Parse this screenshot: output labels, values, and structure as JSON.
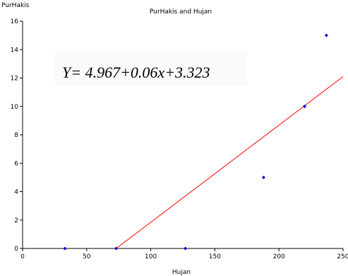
{
  "chart_data": {
    "type": "scatter",
    "title": "PurHakis and Hujan",
    "xlabel": "Hujan",
    "ylabel": "PurHakis",
    "xlim": [
      0,
      250
    ],
    "ylim": [
      0,
      16
    ],
    "x_ticks": [
      0,
      50,
      100,
      150,
      200,
      250
    ],
    "y_ticks": [
      0,
      2,
      4,
      6,
      8,
      10,
      12,
      14,
      16
    ],
    "grid": false,
    "points": [
      {
        "x": 33,
        "y": 0
      },
      {
        "x": 73,
        "y": 0
      },
      {
        "x": 127,
        "y": 0
      },
      {
        "x": 188,
        "y": 5
      },
      {
        "x": 220,
        "y": 10
      },
      {
        "x": 237,
        "y": 15
      }
    ],
    "fit_line": {
      "from": {
        "x": 73,
        "y": 0
      },
      "to": {
        "x": 250,
        "y": 12.1
      },
      "color": "#ff0000"
    },
    "annotation": "Y= 4.967+0.06x+3.323",
    "colors": {
      "points": "#0000cc",
      "fit": "#ff0000",
      "axis": "#000000",
      "annotation_bg": "#fafafa"
    }
  }
}
